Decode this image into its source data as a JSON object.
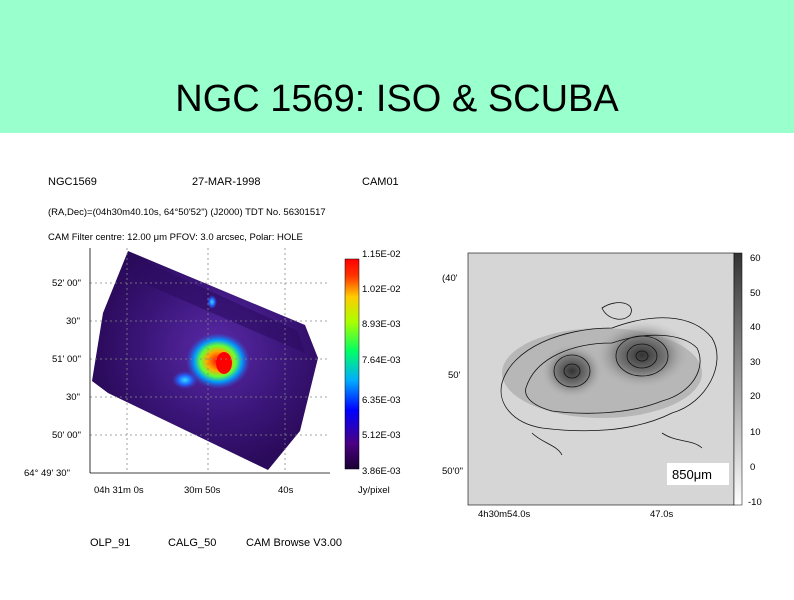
{
  "slide": {
    "title": "NGC 1569: ISO & SCUBA",
    "banner_color": "#99ffcc"
  },
  "iso": {
    "header_object": "NGC1569",
    "header_date": "27-MAR-1998",
    "header_instrument": "CAM01",
    "line2": "(RA,Dec)=(04h30m40.10s, 64°50'52\") (J2000) TDT No. 56301517",
    "line3": "CAM  Filter  centre: 12.00 μm      PFOV:  3.0 arcsec, Polar: HOLE",
    "dec_labels": [
      "52' 00\"",
      "30\"",
      "51' 00\"",
      "30\"",
      "50' 00\"",
      "64° 49' 30\""
    ],
    "ra_labels": [
      "04h 31m  0s",
      "30m 50s",
      "40s"
    ],
    "colorbar_ticks": [
      "1.15E-02",
      "1.02E-02",
      "8.93E-03",
      "7.64E-03",
      "6.35E-03",
      "5.12E-03",
      "3.86E-03"
    ],
    "colorbar_unit": "Jy/pixel",
    "footer": [
      "OLP_91",
      "CALG_50",
      "CAM Browse V3.00"
    ]
  },
  "scuba": {
    "dec_labels": [
      "(40'",
      "50'",
      "50'0\""
    ],
    "ra_labels": [
      "4h30m54.0s",
      "47.0s"
    ],
    "wavelength": "850μm",
    "colorbar_ticks": [
      "60",
      "50",
      "40",
      "30",
      "20",
      "10",
      "0",
      "-10"
    ]
  }
}
